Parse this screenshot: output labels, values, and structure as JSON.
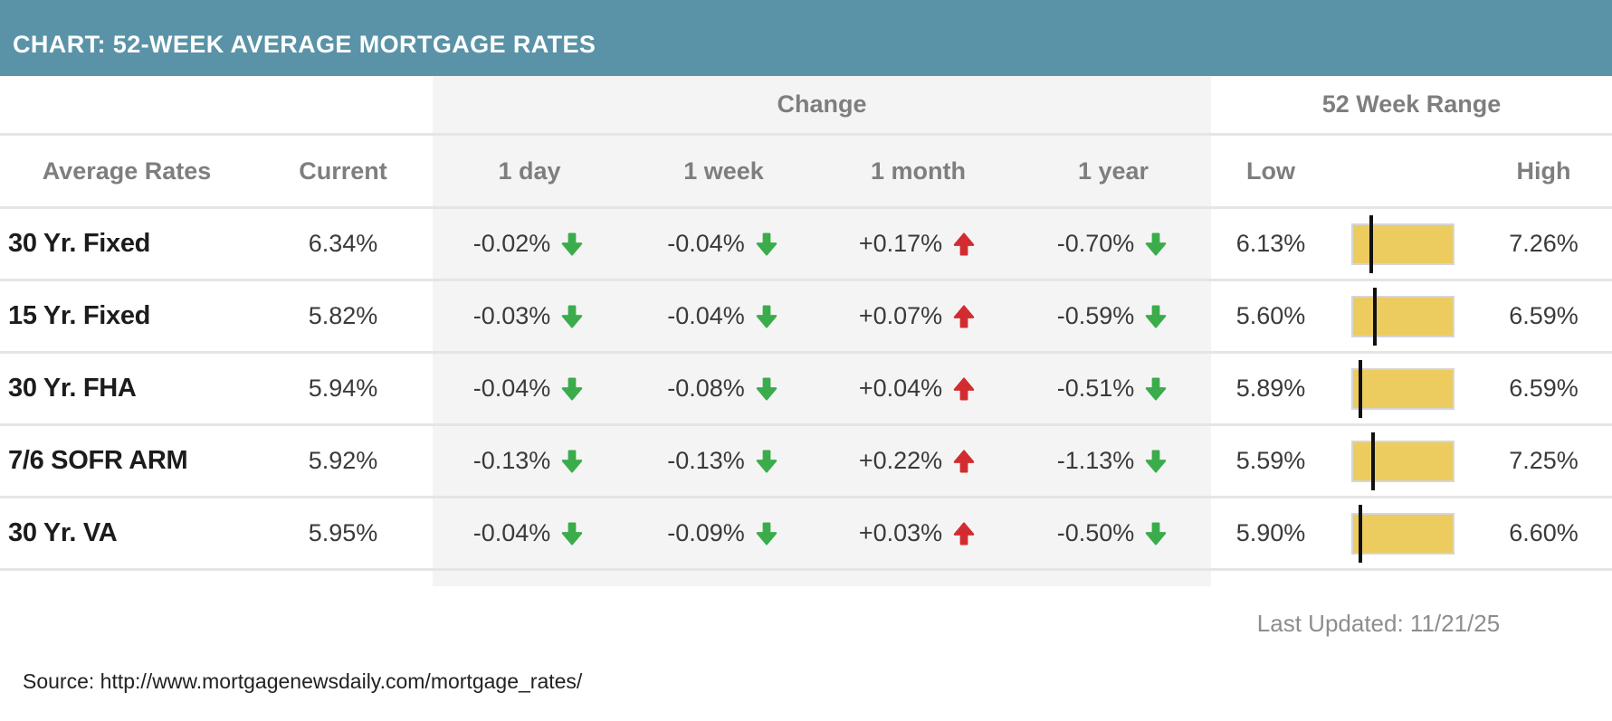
{
  "title_bar": {
    "title": "CHART: 52-WEEK AVERAGE MORTGAGE RATES"
  },
  "chart_data": {
    "type": "table",
    "title": "CHART: 52-WEEK AVERAGE MORTGAGE RATES",
    "column_groups": {
      "change": "Change",
      "range": "52 Week Range"
    },
    "columns": {
      "rates": "Average Rates",
      "current": "Current",
      "day": "1 day",
      "week": "1 week",
      "month": "1 month",
      "year": "1 year",
      "low": "Low",
      "high": "High"
    },
    "rows": [
      {
        "label": "30 Yr. Fixed",
        "current": "6.34%",
        "current_val": 6.34,
        "changes": [
          {
            "period": "1 day",
            "value": "-0.02%",
            "direction": "down"
          },
          {
            "period": "1 week",
            "value": "-0.04%",
            "direction": "down"
          },
          {
            "period": "1 month",
            "value": "+0.17%",
            "direction": "up"
          },
          {
            "period": "1 year",
            "value": "-0.70%",
            "direction": "down"
          }
        ],
        "low": "6.13%",
        "low_val": 6.13,
        "high": "7.26%",
        "high_val": 7.26
      },
      {
        "label": "15 Yr. Fixed",
        "current": "5.82%",
        "current_val": 5.82,
        "changes": [
          {
            "period": "1 day",
            "value": "-0.03%",
            "direction": "down"
          },
          {
            "period": "1 week",
            "value": "-0.04%",
            "direction": "down"
          },
          {
            "period": "1 month",
            "value": "+0.07%",
            "direction": "up"
          },
          {
            "period": "1 year",
            "value": "-0.59%",
            "direction": "down"
          }
        ],
        "low": "5.60%",
        "low_val": 5.6,
        "high": "6.59%",
        "high_val": 6.59
      },
      {
        "label": "30 Yr. FHA",
        "current": "5.94%",
        "current_val": 5.94,
        "changes": [
          {
            "period": "1 day",
            "value": "-0.04%",
            "direction": "down"
          },
          {
            "period": "1 week",
            "value": "-0.08%",
            "direction": "down"
          },
          {
            "period": "1 month",
            "value": "+0.04%",
            "direction": "up"
          },
          {
            "period": "1 year",
            "value": "-0.51%",
            "direction": "down"
          }
        ],
        "low": "5.89%",
        "low_val": 5.89,
        "high": "6.59%",
        "high_val": 6.59
      },
      {
        "label": "7/6 SOFR ARM",
        "current": "5.92%",
        "current_val": 5.92,
        "changes": [
          {
            "period": "1 day",
            "value": "-0.13%",
            "direction": "down"
          },
          {
            "period": "1 week",
            "value": "-0.13%",
            "direction": "down"
          },
          {
            "period": "1 month",
            "value": "+0.22%",
            "direction": "up"
          },
          {
            "period": "1 year",
            "value": "-1.13%",
            "direction": "down"
          }
        ],
        "low": "5.59%",
        "low_val": 5.59,
        "high": "7.25%",
        "high_val": 7.25
      },
      {
        "label": "30 Yr. VA",
        "current": "5.95%",
        "current_val": 5.95,
        "changes": [
          {
            "period": "1 day",
            "value": "-0.04%",
            "direction": "down"
          },
          {
            "period": "1 week",
            "value": "-0.09%",
            "direction": "down"
          },
          {
            "period": "1 month",
            "value": "+0.03%",
            "direction": "up"
          },
          {
            "period": "1 year",
            "value": "-0.50%",
            "direction": "down"
          }
        ],
        "low": "5.90%",
        "low_val": 5.9,
        "high": "6.60%",
        "high_val": 6.6
      }
    ]
  },
  "footer": {
    "last_updated": "Last Updated: 11/21/25",
    "source": "Source: http://www.mortgagenewsdaily.com/mortgage_rates/"
  },
  "colors": {
    "header_bg": "#5a93a7",
    "down_green": "#3bac4b",
    "up_red": "#d22c30",
    "range_bar_fill": "#eccb5f",
    "range_bar_border": "#d6d6d6",
    "tick_black": "#111111"
  }
}
